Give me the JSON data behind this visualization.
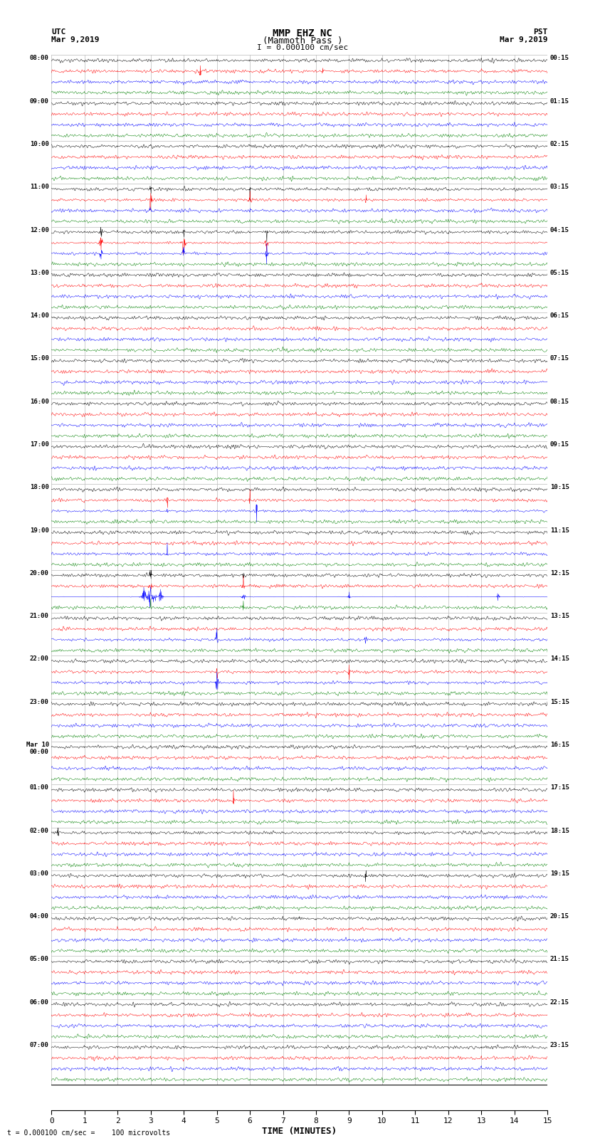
{
  "title_line1": "MMP EHZ NC",
  "title_line2": "(Mammoth Pass )",
  "scale_label": "I = 0.000100 cm/sec",
  "footer_label": "= 0.000100 cm/sec =    100 microvolts",
  "footer_prefix": "t",
  "utc_label": "UTC",
  "utc_date": "Mar 9,2019",
  "pst_label": "PST",
  "pst_date": "Mar 9,2019",
  "xlabel": "TIME (MINUTES)",
  "left_times": [
    "08:00",
    "09:00",
    "10:00",
    "11:00",
    "12:00",
    "13:00",
    "14:00",
    "15:00",
    "16:00",
    "17:00",
    "18:00",
    "19:00",
    "20:00",
    "21:00",
    "22:00",
    "23:00",
    "Mar 10\n00:00",
    "01:00",
    "02:00",
    "03:00",
    "04:00",
    "05:00",
    "06:00",
    "07:00"
  ],
  "right_times": [
    "00:15",
    "01:15",
    "02:15",
    "03:15",
    "04:15",
    "05:15",
    "06:15",
    "07:15",
    "08:15",
    "09:15",
    "10:15",
    "11:15",
    "12:15",
    "13:15",
    "14:15",
    "15:15",
    "16:15",
    "17:15",
    "18:15",
    "19:15",
    "20:15",
    "21:15",
    "22:15",
    "23:15"
  ],
  "colors": [
    "black",
    "red",
    "blue",
    "green"
  ],
  "n_rows": 24,
  "traces_per_row": 4,
  "minutes_per_row": 15,
  "fig_width": 8.5,
  "fig_height": 16.13,
  "bg_color": "white",
  "grid_color": "#aaaaaa",
  "noise_scales": [
    0.25,
    0.35,
    0.28,
    0.15
  ],
  "lw": 0.35
}
